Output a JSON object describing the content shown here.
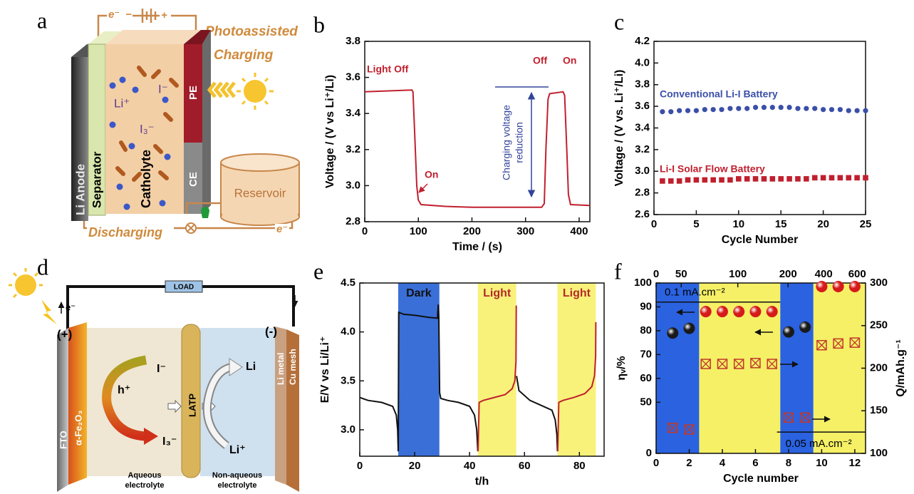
{
  "diagram_a": {
    "label": "a",
    "charge_electron": "e⁻",
    "minus": "−",
    "plus": "+",
    "photo_line1": "Photoassisted",
    "photo_line2": "Charging",
    "anode": "Li Anode",
    "separator": "Separator",
    "catholyte": "Catholyte",
    "li_ion": "Li⁺",
    "iodide": "I⁻",
    "triiodide": "I₃⁻",
    "pe": "PE",
    "ce": "CE",
    "reservoir": "Reservoir",
    "discharging": "Discharging",
    "discharge_electron": "e⁻"
  },
  "diagram_d": {
    "label": "d",
    "load": "LOAD",
    "electron": "e⁻",
    "positive": "(+)",
    "negative": "(-)",
    "fto": "FTO",
    "hematite": "α-Fe₂O₃",
    "iodide": "I⁻",
    "hole": "h⁺",
    "triiodide": "I₃⁻",
    "latp": "LATP",
    "li": "Li",
    "li_ion": "Li⁺",
    "cu_mesh": "Cu mesh",
    "li_metal": "Li metal",
    "aqueous": [
      "Aqueous",
      "electrolyte"
    ],
    "nonaqueous": [
      "Non-aqueous",
      "electrolyte"
    ]
  },
  "chart_data": [
    {
      "type": "line",
      "label": "b",
      "xlabel": "Time / (s)",
      "ylabel": "Voltage / (V vs Li⁺/Li)",
      "x": [
        0,
        88,
        90,
        93,
        97,
        100,
        105,
        150,
        200,
        250,
        300,
        330,
        335,
        338,
        342,
        345,
        370,
        373,
        377,
        380,
        384,
        420
      ],
      "series": [
        {
          "color": "#c0202e",
          "values": [
            3.52,
            3.53,
            3.52,
            3.3,
            3.0,
            2.92,
            2.895,
            2.885,
            2.88,
            2.88,
            2.88,
            2.88,
            2.9,
            3.2,
            3.48,
            3.51,
            3.52,
            3.5,
            3.2,
            2.95,
            2.895,
            2.89
          ]
        }
      ],
      "xlim": [
        0,
        420
      ],
      "ylim": [
        2.8,
        3.8
      ],
      "xticks": [
        0,
        100,
        200,
        300,
        400
      ],
      "yticks": [
        2.8,
        {
          "value": 3,
          "label": "3.0"
        },
        3.2,
        3.4,
        3.6,
        3.8
      ],
      "annotations": [
        "Light Off",
        "On",
        "Off",
        "On",
        "Charging voltage",
        "reduction"
      ]
    },
    {
      "type": "scatter",
      "label": "c",
      "xlabel": "Cycle Number",
      "ylabel": "Voltage / (V vs. Li⁺/Li)",
      "x": [
        1,
        2,
        3,
        4,
        5,
        6,
        7,
        8,
        9,
        10,
        11,
        12,
        13,
        14,
        15,
        16,
        17,
        18,
        19,
        20,
        21,
        22,
        23,
        24,
        25
      ],
      "series": [
        {
          "name": "Conventional Li-I Battery",
          "color": "#3b4fa8",
          "marker": "circle",
          "values": [
            3.55,
            3.55,
            3.56,
            3.56,
            3.56,
            3.57,
            3.57,
            3.57,
            3.58,
            3.58,
            3.58,
            3.59,
            3.59,
            3.59,
            3.59,
            3.59,
            3.58,
            3.58,
            3.58,
            3.57,
            3.57,
            3.57,
            3.56,
            3.56,
            3.56
          ]
        },
        {
          "name": "Li-I Solar Flow Battery",
          "color": "#c0202e",
          "marker": "square",
          "values": [
            2.91,
            2.91,
            2.91,
            2.92,
            2.92,
            2.92,
            2.92,
            2.92,
            2.92,
            2.93,
            2.93,
            2.93,
            2.93,
            2.93,
            2.93,
            2.93,
            2.93,
            2.93,
            2.94,
            2.94,
            2.94,
            2.94,
            2.94,
            2.94,
            2.94
          ]
        }
      ],
      "xlim": [
        0,
        25
      ],
      "ylim": [
        2.6,
        4.2
      ],
      "xticks": [
        0,
        5,
        10,
        15,
        20,
        25
      ],
      "yticks": [
        2.6,
        2.8,
        {
          "value": 3,
          "label": "3.0"
        },
        3.2,
        3.4,
        3.6,
        3.8,
        {
          "value": 4,
          "label": "4.0"
        },
        4.2
      ]
    },
    {
      "type": "line",
      "label": "e",
      "xlabel": "t/h",
      "ylabel": "E/V vs Li/Li⁺",
      "regions": [
        {
          "label": "Dark",
          "start": 14,
          "end": 29,
          "color": "#3a6fd8",
          "label_color": "#111111"
        },
        {
          "label": "Light",
          "start": 43,
          "end": 57,
          "color": "#f8f27a",
          "label_color": "#b42a2a"
        },
        {
          "label": "Light",
          "start": 72,
          "end": 86,
          "color": "#f8f27a",
          "label_color": "#b42a2a"
        }
      ],
      "series": [
        {
          "color": "#111111",
          "x": [
            0,
            3,
            8,
            12,
            13.3,
            13.8,
            14,
            14.2,
            16,
            20,
            25,
            28.3,
            28.6,
            28.8,
            29.1,
            29.5,
            32,
            36,
            40,
            41.8,
            42.6,
            43,
            null,
            57.1,
            58,
            62,
            66,
            70,
            71.2,
            71.8,
            72
          ],
          "values": [
            3.33,
            3.3,
            3.28,
            3.24,
            3.15,
            3.0,
            2.78,
            4.2,
            4.18,
            4.17,
            4.15,
            4.14,
            4.28,
            4.15,
            3.38,
            3.32,
            3.3,
            3.28,
            3.24,
            3.15,
            3.0,
            2.78,
            null,
            3.55,
            3.4,
            3.3,
            3.25,
            3.2,
            3.1,
            2.95,
            2.78
          ]
        },
        {
          "color": "#c0202e",
          "x": [
            43.1,
            43.5,
            45,
            49,
            53,
            55.5,
            56.5,
            56.9,
            57,
            null,
            72.1,
            72.5,
            74,
            78,
            82,
            84.5,
            85.5,
            85.9,
            86
          ],
          "values": [
            2.78,
            3.28,
            3.3,
            3.33,
            3.36,
            3.42,
            3.5,
            3.7,
            4.27,
            null,
            2.78,
            3.28,
            3.3,
            3.33,
            3.37,
            3.44,
            3.55,
            3.75,
            4.1
          ]
        }
      ],
      "xlim": [
        0,
        89
      ],
      "ylim": [
        2.73,
        4.5
      ],
      "xticks": [
        0,
        20,
        40,
        60,
        80
      ],
      "yticks": [
        {
          "value": 3,
          "label": "3.0"
        },
        3.5,
        {
          "value": 4,
          "label": "4.0"
        },
        4.5
      ]
    },
    {
      "type": "scatter",
      "label": "f",
      "xlabel": "Cycle number",
      "ylabel": "ηᵥ/%",
      "y2label": "Q/mAh.g⁻¹",
      "regions": [
        {
          "start": 0,
          "end": 2.6,
          "color": "#2a62e0"
        },
        {
          "start": 2.6,
          "end": 7.5,
          "color": "#f5f066"
        },
        {
          "start": 7.5,
          "end": 9.5,
          "color": "#2a62e0"
        },
        {
          "start": 9.5,
          "end": 12.65,
          "color": "#f5f066"
        }
      ],
      "series": [
        {
          "color": "#1a1a1a",
          "marker": "ball",
          "x": [
            1,
            2,
            8,
            9
          ],
          "values": [
            79,
            81,
            79.5,
            81.5
          ]
        },
        {
          "color": "#d61a1a",
          "marker": "ball",
          "x": [
            3,
            4,
            5,
            6,
            7,
            10,
            11,
            12
          ],
          "values": [
            88,
            88,
            88,
            88,
            88,
            98.5,
            98.5,
            98.5
          ]
        },
        {
          "color": "#c0392b",
          "marker": "crossbox",
          "axis": "y2",
          "x": [
            1,
            2,
            3,
            4,
            5,
            6,
            7,
            8,
            9,
            10,
            11,
            12
          ],
          "values": [
            130,
            128,
            205,
            205,
            205,
            206,
            205,
            142,
            142,
            227,
            229,
            230
          ]
        }
      ],
      "ref_lines": [
        {
          "label": "0.1 mA.cm⁻²",
          "axis": "y",
          "value": 92,
          "x": [
            0,
            7.5
          ]
        },
        {
          "label": "0.05 mA.cm⁻²",
          "axis": "y2",
          "value": 125,
          "x": [
            7.3,
            12.65
          ]
        }
      ],
      "xlim": [
        0,
        12.65
      ],
      "ylim": [
        0,
        100
      ],
      "ybreak": 50,
      "y2lim": [
        100,
        300
      ],
      "xticks": [
        0,
        2,
        4,
        6,
        8,
        10,
        12
      ],
      "x2ticks": [
        0,
        50,
        100,
        200,
        400,
        600
      ],
      "yticks": [
        0,
        50,
        60,
        70,
        80,
        90,
        100
      ],
      "y2ticks": [
        100,
        150,
        200,
        250,
        300
      ]
    }
  ]
}
